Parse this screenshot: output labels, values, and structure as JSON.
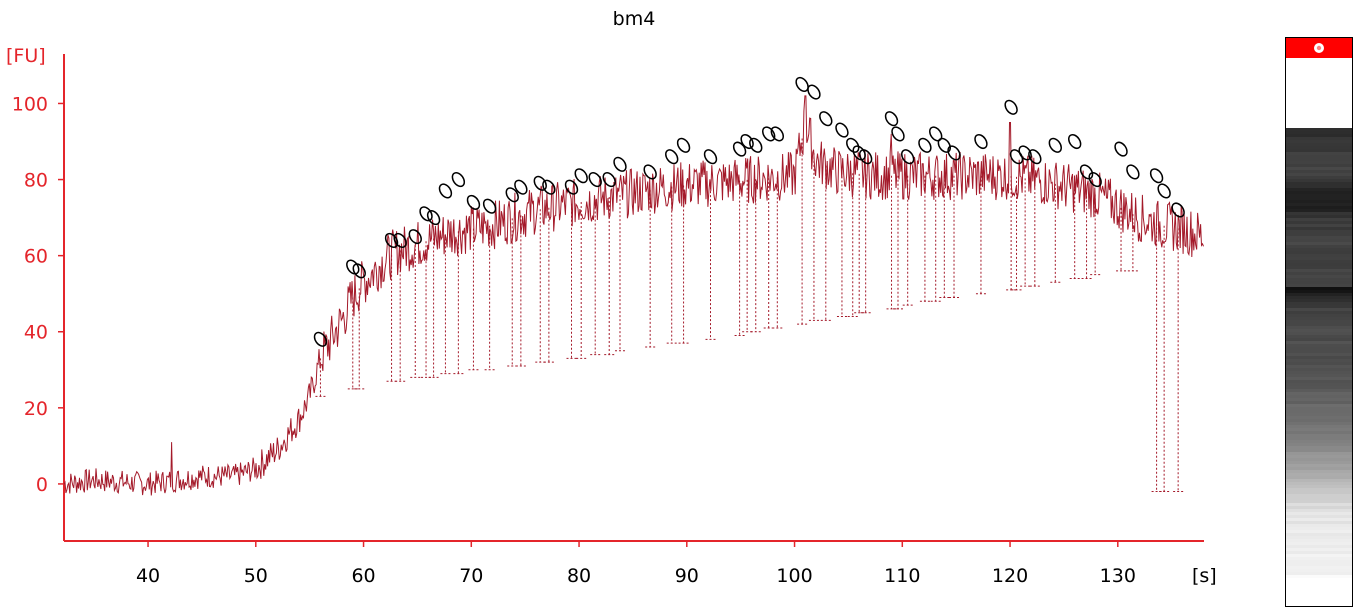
{
  "colors": {
    "axis": "#e4252b",
    "trace": "#a41a2a",
    "peak_marker": "#000000",
    "gel_header": "#ff0000"
  },
  "chart_data": {
    "type": "line",
    "title": "bm4",
    "ylabel": "[FU]",
    "xlabel": "[s]",
    "xlim": [
      32.2,
      138
    ],
    "ylim": [
      -15,
      113
    ],
    "xticks": [
      40,
      50,
      60,
      70,
      80,
      90,
      100,
      110,
      120,
      130
    ],
    "yticks": [
      0,
      20,
      40,
      60,
      80,
      100
    ],
    "grid": false,
    "anchors": [
      [
        32.2,
        0
      ],
      [
        35,
        1
      ],
      [
        40,
        0
      ],
      [
        45,
        2
      ],
      [
        48,
        2
      ],
      [
        50,
        4
      ],
      [
        52,
        9
      ],
      [
        54,
        17
      ],
      [
        55,
        23
      ],
      [
        56,
        33
      ],
      [
        57,
        38
      ],
      [
        58,
        43
      ],
      [
        59,
        49
      ],
      [
        60,
        53
      ],
      [
        61,
        56
      ],
      [
        62,
        59
      ],
      [
        63,
        61
      ],
      [
        64,
        62
      ],
      [
        65,
        63
      ],
      [
        66,
        64
      ],
      [
        67,
        65
      ],
      [
        68,
        66
      ],
      [
        70,
        67
      ],
      [
        72,
        68
      ],
      [
        74,
        70
      ],
      [
        76,
        72
      ],
      [
        78,
        73
      ],
      [
        80,
        74
      ],
      [
        84,
        76
      ],
      [
        88,
        78
      ],
      [
        92,
        79
      ],
      [
        96,
        80
      ],
      [
        100,
        81
      ],
      [
        101,
        95
      ],
      [
        102,
        85
      ],
      [
        104,
        82
      ],
      [
        108,
        81
      ],
      [
        112,
        81
      ],
      [
        116,
        81
      ],
      [
        120,
        81
      ],
      [
        124,
        79
      ],
      [
        128,
        76
      ],
      [
        130,
        73
      ],
      [
        132,
        70
      ],
      [
        134,
        68
      ],
      [
        136,
        67
      ],
      [
        138,
        65
      ]
    ],
    "spikes": [
      [
        42.2,
        11
      ],
      [
        101,
        102
      ],
      [
        120,
        95
      ],
      [
        109,
        92
      ]
    ],
    "peaks": [
      [
        56,
        38,
        23
      ],
      [
        59,
        57,
        25
      ],
      [
        59.6,
        56,
        25
      ],
      [
        62.6,
        64,
        27
      ],
      [
        63.4,
        64,
        27
      ],
      [
        64.8,
        65,
        28
      ],
      [
        65.8,
        71,
        28
      ],
      [
        66.5,
        70,
        28
      ],
      [
        67.6,
        77,
        29
      ],
      [
        68.8,
        80,
        29
      ],
      [
        70.2,
        74,
        30
      ],
      [
        71.7,
        73,
        30
      ],
      [
        73.8,
        76,
        31
      ],
      [
        74.6,
        78,
        31
      ],
      [
        76.4,
        79,
        32
      ],
      [
        77.2,
        78,
        32
      ],
      [
        79.3,
        78,
        33
      ],
      [
        80.2,
        81,
        33
      ],
      [
        81.5,
        80,
        34
      ],
      [
        82.8,
        80,
        34
      ],
      [
        83.8,
        84,
        35
      ],
      [
        86.6,
        82,
        36
      ],
      [
        88.6,
        86,
        37
      ],
      [
        89.7,
        89,
        37
      ],
      [
        92.2,
        86,
        38
      ],
      [
        94.9,
        88,
        39
      ],
      [
        95.6,
        90,
        40
      ],
      [
        96.4,
        89,
        40
      ],
      [
        97.6,
        92,
        41
      ],
      [
        98.4,
        92,
        41
      ],
      [
        100.7,
        105,
        42
      ],
      [
        101.8,
        103,
        43
      ],
      [
        102.9,
        96,
        43
      ],
      [
        104.4,
        93,
        44
      ],
      [
        105.4,
        89,
        44
      ],
      [
        106,
        87,
        45
      ],
      [
        106.6,
        86,
        45
      ],
      [
        109,
        96,
        46
      ],
      [
        109.6,
        92,
        46
      ],
      [
        110.5,
        86,
        47
      ],
      [
        112.1,
        89,
        48
      ],
      [
        113.1,
        92,
        48
      ],
      [
        113.9,
        89,
        49
      ],
      [
        114.8,
        87,
        49
      ],
      [
        117.3,
        90,
        50
      ],
      [
        120.1,
        99,
        51
      ],
      [
        120.6,
        86,
        51
      ],
      [
        121.4,
        87,
        52
      ],
      [
        122.3,
        86,
        52
      ],
      [
        124.2,
        89,
        53
      ],
      [
        126,
        90,
        54
      ],
      [
        127.1,
        82,
        54
      ],
      [
        127.9,
        80,
        55
      ],
      [
        130.3,
        88,
        56
      ],
      [
        131.4,
        82,
        56
      ],
      [
        133.6,
        81,
        -2
      ],
      [
        134.3,
        77,
        -2
      ],
      [
        135.6,
        72,
        -2
      ]
    ]
  },
  "gel": {
    "header_icon": "bullseye-icon",
    "bands": [
      [
        0,
        0.18
      ],
      [
        0.05,
        0.24
      ],
      [
        0.1,
        0.26
      ],
      [
        0.16,
        0.1
      ],
      [
        0.2,
        0.22
      ],
      [
        0.25,
        0.27
      ],
      [
        0.3,
        0.25
      ],
      [
        0.35,
        0.28
      ],
      [
        0.345,
        0.05
      ],
      [
        0.4,
        0.26
      ],
      [
        0.45,
        0.29
      ],
      [
        0.5,
        0.31
      ],
      [
        0.55,
        0.33
      ],
      [
        0.6,
        0.38
      ],
      [
        0.65,
        0.45
      ],
      [
        0.7,
        0.52
      ],
      [
        0.75,
        0.62
      ],
      [
        0.8,
        0.78
      ],
      [
        0.85,
        0.88
      ],
      [
        0.9,
        0.92
      ],
      [
        0.95,
        0.95
      ],
      [
        1.0,
        0.96
      ]
    ]
  }
}
